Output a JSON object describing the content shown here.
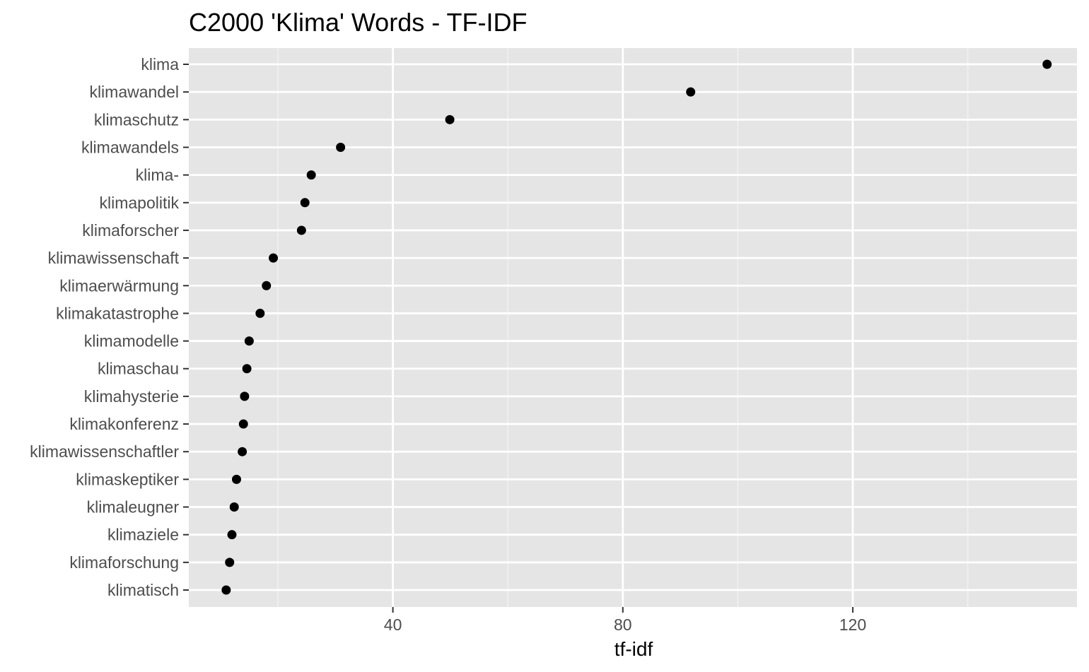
{
  "chart_data": {
    "type": "scatter",
    "title": "C2000 'Klima' Words - TF-IDF",
    "xlabel": "tf-idf",
    "ylabel": "",
    "xlim": [
      4.5,
      159
    ],
    "xticks": [
      40,
      80,
      120
    ],
    "grid": true,
    "categories": [
      "klima",
      "klimawandel",
      "klimaschutz",
      "klimawandels",
      "klima-",
      "klimapolitik",
      "klimaforscher",
      "klimawissenschaft",
      "klimaerwärmung",
      "klimakatastrophe",
      "klimamodelle",
      "klimaschau",
      "klimahysterie",
      "klimakonferenz",
      "klimawissenschaftler",
      "klimaskeptiker",
      "klimaleugner",
      "klimaziele",
      "klimaforschung",
      "klimatisch"
    ],
    "values": [
      153.8,
      91.8,
      49.9,
      30.9,
      25.8,
      24.7,
      24.1,
      19.2,
      18.0,
      16.9,
      15.0,
      14.6,
      14.2,
      14.0,
      13.8,
      12.8,
      12.4,
      12.0,
      11.6,
      11.0
    ]
  },
  "colors": {
    "panel_background": "#e5e5e5",
    "grid_major": "#ffffff",
    "grid_minor": "#f2f2f2",
    "point": "#000000",
    "tick_text": "#4d4d4d",
    "tick_mark": "#333333"
  }
}
